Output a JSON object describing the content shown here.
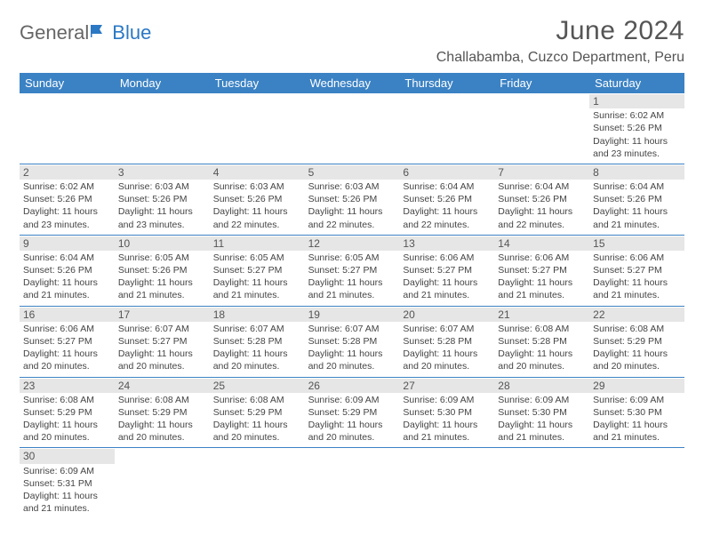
{
  "brand": {
    "general": "General",
    "blue": "Blue"
  },
  "title": "June 2024",
  "location": "Challabamba, Cuzco Department, Peru",
  "colors": {
    "header_bg": "#3b82c4",
    "header_text": "#ffffff",
    "daynum_bg": "#e6e6e6",
    "text": "#444444",
    "rule": "#3b82c4"
  },
  "daysOfWeek": [
    "Sunday",
    "Monday",
    "Tuesday",
    "Wednesday",
    "Thursday",
    "Friday",
    "Saturday"
  ],
  "weeks": [
    [
      null,
      null,
      null,
      null,
      null,
      null,
      {
        "n": "1",
        "rise": "6:02 AM",
        "set": "5:26 PM",
        "day": "11 hours and 23 minutes."
      }
    ],
    [
      {
        "n": "2",
        "rise": "6:02 AM",
        "set": "5:26 PM",
        "day": "11 hours and 23 minutes."
      },
      {
        "n": "3",
        "rise": "6:03 AM",
        "set": "5:26 PM",
        "day": "11 hours and 23 minutes."
      },
      {
        "n": "4",
        "rise": "6:03 AM",
        "set": "5:26 PM",
        "day": "11 hours and 22 minutes."
      },
      {
        "n": "5",
        "rise": "6:03 AM",
        "set": "5:26 PM",
        "day": "11 hours and 22 minutes."
      },
      {
        "n": "6",
        "rise": "6:04 AM",
        "set": "5:26 PM",
        "day": "11 hours and 22 minutes."
      },
      {
        "n": "7",
        "rise": "6:04 AM",
        "set": "5:26 PM",
        "day": "11 hours and 22 minutes."
      },
      {
        "n": "8",
        "rise": "6:04 AM",
        "set": "5:26 PM",
        "day": "11 hours and 21 minutes."
      }
    ],
    [
      {
        "n": "9",
        "rise": "6:04 AM",
        "set": "5:26 PM",
        "day": "11 hours and 21 minutes."
      },
      {
        "n": "10",
        "rise": "6:05 AM",
        "set": "5:26 PM",
        "day": "11 hours and 21 minutes."
      },
      {
        "n": "11",
        "rise": "6:05 AM",
        "set": "5:27 PM",
        "day": "11 hours and 21 minutes."
      },
      {
        "n": "12",
        "rise": "6:05 AM",
        "set": "5:27 PM",
        "day": "11 hours and 21 minutes."
      },
      {
        "n": "13",
        "rise": "6:06 AM",
        "set": "5:27 PM",
        "day": "11 hours and 21 minutes."
      },
      {
        "n": "14",
        "rise": "6:06 AM",
        "set": "5:27 PM",
        "day": "11 hours and 21 minutes."
      },
      {
        "n": "15",
        "rise": "6:06 AM",
        "set": "5:27 PM",
        "day": "11 hours and 21 minutes."
      }
    ],
    [
      {
        "n": "16",
        "rise": "6:06 AM",
        "set": "5:27 PM",
        "day": "11 hours and 20 minutes."
      },
      {
        "n": "17",
        "rise": "6:07 AM",
        "set": "5:27 PM",
        "day": "11 hours and 20 minutes."
      },
      {
        "n": "18",
        "rise": "6:07 AM",
        "set": "5:28 PM",
        "day": "11 hours and 20 minutes."
      },
      {
        "n": "19",
        "rise": "6:07 AM",
        "set": "5:28 PM",
        "day": "11 hours and 20 minutes."
      },
      {
        "n": "20",
        "rise": "6:07 AM",
        "set": "5:28 PM",
        "day": "11 hours and 20 minutes."
      },
      {
        "n": "21",
        "rise": "6:08 AM",
        "set": "5:28 PM",
        "day": "11 hours and 20 minutes."
      },
      {
        "n": "22",
        "rise": "6:08 AM",
        "set": "5:29 PM",
        "day": "11 hours and 20 minutes."
      }
    ],
    [
      {
        "n": "23",
        "rise": "6:08 AM",
        "set": "5:29 PM",
        "day": "11 hours and 20 minutes."
      },
      {
        "n": "24",
        "rise": "6:08 AM",
        "set": "5:29 PM",
        "day": "11 hours and 20 minutes."
      },
      {
        "n": "25",
        "rise": "6:08 AM",
        "set": "5:29 PM",
        "day": "11 hours and 20 minutes."
      },
      {
        "n": "26",
        "rise": "6:09 AM",
        "set": "5:29 PM",
        "day": "11 hours and 20 minutes."
      },
      {
        "n": "27",
        "rise": "6:09 AM",
        "set": "5:30 PM",
        "day": "11 hours and 21 minutes."
      },
      {
        "n": "28",
        "rise": "6:09 AM",
        "set": "5:30 PM",
        "day": "11 hours and 21 minutes."
      },
      {
        "n": "29",
        "rise": "6:09 AM",
        "set": "5:30 PM",
        "day": "11 hours and 21 minutes."
      }
    ],
    [
      {
        "n": "30",
        "rise": "6:09 AM",
        "set": "5:31 PM",
        "day": "11 hours and 21 minutes."
      },
      null,
      null,
      null,
      null,
      null,
      null
    ]
  ],
  "labels": {
    "sunrise": "Sunrise:",
    "sunset": "Sunset:",
    "daylight": "Daylight:"
  }
}
